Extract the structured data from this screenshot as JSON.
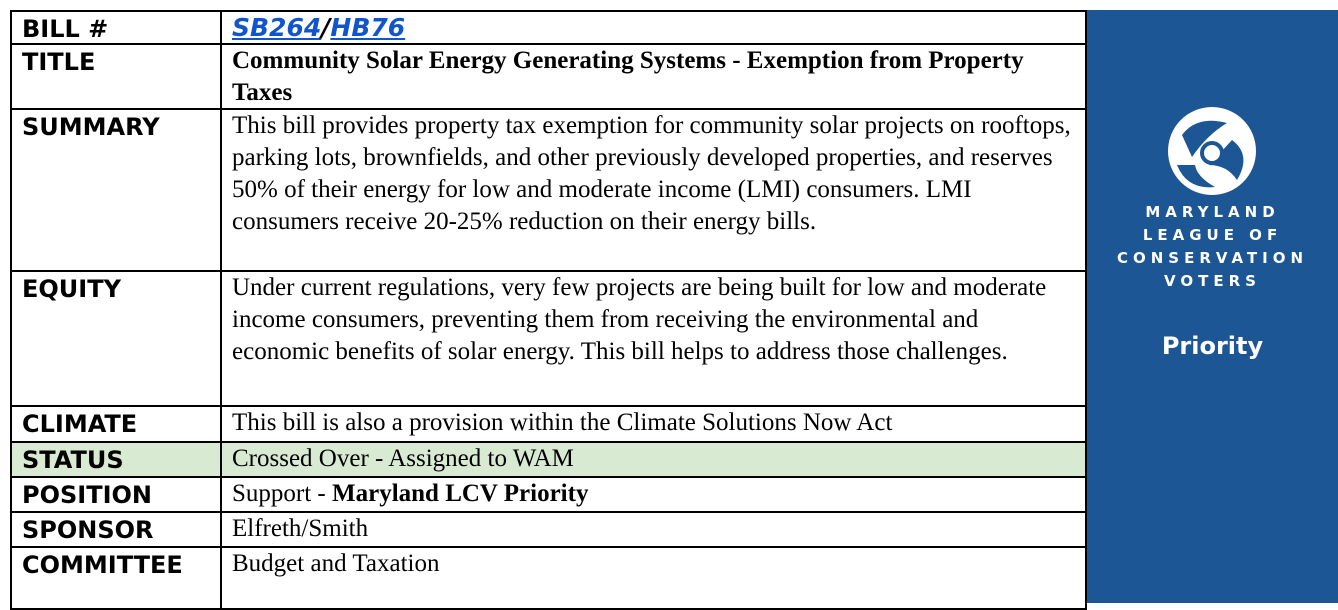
{
  "table": {
    "rows": [
      {
        "label": "BILL #",
        "value": {
          "link1": "SB264",
          "sep": "/",
          "link2": "HB76"
        }
      },
      {
        "label": "TITLE",
        "value": "Community Solar Energy Generating Systems - Exemption from Property Taxes"
      },
      {
        "label": "SUMMARY",
        "value": "This bill provides property tax exemption for community solar projects on rooftops, parking lots, brownfields, and other previously developed properties, and reserves 50% of their energy for low and moderate income (LMI) consumers.  LMI consumers receive 20-25% reduction on their energy bills."
      },
      {
        "label": "EQUITY",
        "value": "Under current regulations, very few projects are being built for low and moderate income consumers, preventing them from receiving the environmental and economic benefits of solar energy.  This bill helps to address those challenges."
      },
      {
        "label": "CLIMATE",
        "value": "This bill is also a provision within the Climate Solutions Now Act"
      },
      {
        "label": "STATUS",
        "value": "Crossed Over - Assigned to WAM"
      },
      {
        "label": "POSITION",
        "value": {
          "plain": "Support - ",
          "bold": "Maryland LCV Priority"
        }
      },
      {
        "label": "SPONSOR",
        "value": "Elfreth/Smith"
      },
      {
        "label": "COMMITTEE",
        "value": "Budget and Taxation"
      }
    ]
  },
  "sidebar": {
    "logo_lines": [
      "MARYLAND",
      "LEAGUE OF",
      "CONSERVATION",
      "VOTERS"
    ],
    "tag": "Priority"
  }
}
